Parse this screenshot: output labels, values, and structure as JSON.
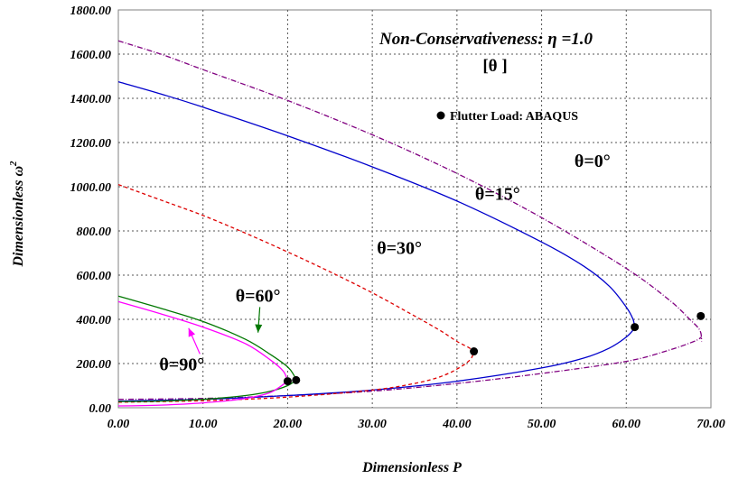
{
  "chart_data": {
    "type": "line",
    "title": "Non-Conservativeness:  η =1.0",
    "subtitle": "[θ ]",
    "xlabel": "Dimensionless P",
    "ylabel_main": "Dimensionless ω",
    "ylabel_sup": "2",
    "xlim": [
      0,
      70
    ],
    "ylim": [
      0,
      1800
    ],
    "xticks": [
      "0.00",
      "10.00",
      "20.00",
      "30.00",
      "40.00",
      "50.00",
      "60.00",
      "70.00"
    ],
    "yticks": [
      "0.00",
      "200.00",
      "400.00",
      "600.00",
      "800.00",
      "1000.00",
      "1200.00",
      "1400.00",
      "1600.00",
      "1800.00"
    ],
    "grid": true,
    "legend": {
      "marker": "●",
      "label": "Flutter Load: ABAQUS",
      "placement": "top-right"
    },
    "series": [
      {
        "name": "θ=0°",
        "color": "#800080",
        "dash": "dashdot",
        "upper": [
          [
            0,
            1660
          ],
          [
            5,
            1600
          ],
          [
            10,
            1530
          ],
          [
            20,
            1390
          ],
          [
            30,
            1235
          ],
          [
            40,
            1060
          ],
          [
            50,
            860
          ],
          [
            60,
            630
          ],
          [
            65,
            490
          ],
          [
            67.5,
            400
          ],
          [
            68.7,
            350
          ],
          [
            68.9,
            300
          ]
        ],
        "lower": [
          [
            0,
            38
          ],
          [
            10,
            42
          ],
          [
            20,
            55
          ],
          [
            30,
            75
          ],
          [
            40,
            110
          ],
          [
            50,
            155
          ],
          [
            60,
            210
          ],
          [
            65,
            260
          ],
          [
            68,
            300
          ],
          [
            68.9,
            320
          ]
        ]
      },
      {
        "name": "θ=15°",
        "color": "#0000cc",
        "dash": "solid",
        "upper": [
          [
            0,
            1475
          ],
          [
            5,
            1420
          ],
          [
            10,
            1360
          ],
          [
            20,
            1230
          ],
          [
            30,
            1090
          ],
          [
            40,
            935
          ],
          [
            50,
            750
          ],
          [
            55,
            640
          ],
          [
            58,
            550
          ],
          [
            60,
            455
          ],
          [
            60.8,
            400
          ],
          [
            61,
            360
          ]
        ],
        "lower": [
          [
            0,
            30
          ],
          [
            10,
            38
          ],
          [
            20,
            55
          ],
          [
            30,
            80
          ],
          [
            40,
            120
          ],
          [
            50,
            180
          ],
          [
            55,
            225
          ],
          [
            58,
            270
          ],
          [
            60,
            320
          ],
          [
            61,
            360
          ]
        ]
      },
      {
        "name": "θ=30°",
        "color": "#dd0000",
        "dash": "dashed",
        "upper": [
          [
            0,
            1010
          ],
          [
            5,
            940
          ],
          [
            10,
            870
          ],
          [
            15,
            790
          ],
          [
            20,
            705
          ],
          [
            25,
            615
          ],
          [
            30,
            520
          ],
          [
            35,
            415
          ],
          [
            38,
            350
          ],
          [
            40,
            300
          ],
          [
            41.5,
            270
          ],
          [
            42,
            250
          ]
        ],
        "lower": [
          [
            0,
            25
          ],
          [
            10,
            32
          ],
          [
            20,
            48
          ],
          [
            30,
            80
          ],
          [
            35,
            110
          ],
          [
            38,
            140
          ],
          [
            40,
            175
          ],
          [
            41.5,
            215
          ],
          [
            42,
            250
          ]
        ]
      },
      {
        "name": "θ=60°",
        "color": "#007700",
        "dash": "solid",
        "upper": [
          [
            0,
            505
          ],
          [
            5,
            450
          ],
          [
            10,
            390
          ],
          [
            15,
            310
          ],
          [
            18,
            240
          ],
          [
            20,
            185
          ],
          [
            20.7,
            150
          ],
          [
            21,
            125
          ]
        ],
        "lower": [
          [
            0,
            28
          ],
          [
            5,
            30
          ],
          [
            10,
            38
          ],
          [
            15,
            55
          ],
          [
            18,
            75
          ],
          [
            20,
            100
          ],
          [
            21,
            125
          ]
        ]
      },
      {
        "name": "θ=90°",
        "color": "#ff00ff",
        "dash": "solid",
        "upper": [
          [
            0,
            480
          ],
          [
            5,
            425
          ],
          [
            10,
            365
          ],
          [
            15,
            290
          ],
          [
            18,
            215
          ],
          [
            19.5,
            165
          ],
          [
            20,
            120
          ]
        ],
        "lower": [
          [
            0,
            8
          ],
          [
            5,
            12
          ],
          [
            10,
            22
          ],
          [
            15,
            42
          ],
          [
            18,
            70
          ],
          [
            20,
            120
          ]
        ]
      }
    ],
    "flutter_points": [
      {
        "x": 68.8,
        "y": 415
      },
      {
        "x": 61.0,
        "y": 365
      },
      {
        "x": 42.0,
        "y": 255
      },
      {
        "x": 21.0,
        "y": 125
      },
      {
        "x": 20.0,
        "y": 120
      }
    ],
    "curve_labels": [
      {
        "series": "θ=0°",
        "at_x": 56,
        "at_y": 1090
      },
      {
        "series": "θ=15°",
        "at_x": 44.8,
        "at_y": 940
      },
      {
        "series": "θ=30°",
        "at_x": 33.2,
        "at_y": 695
      },
      {
        "series": "θ=60°",
        "at_x": 16.5,
        "at_y": 480,
        "arrow_to_x": 16.5,
        "arrow_to_y": 340
      },
      {
        "series": "θ=90°",
        "at_x": 7.5,
        "at_y": 170,
        "arrow_to_x": 8.3,
        "arrow_to_y": 360
      }
    ]
  }
}
